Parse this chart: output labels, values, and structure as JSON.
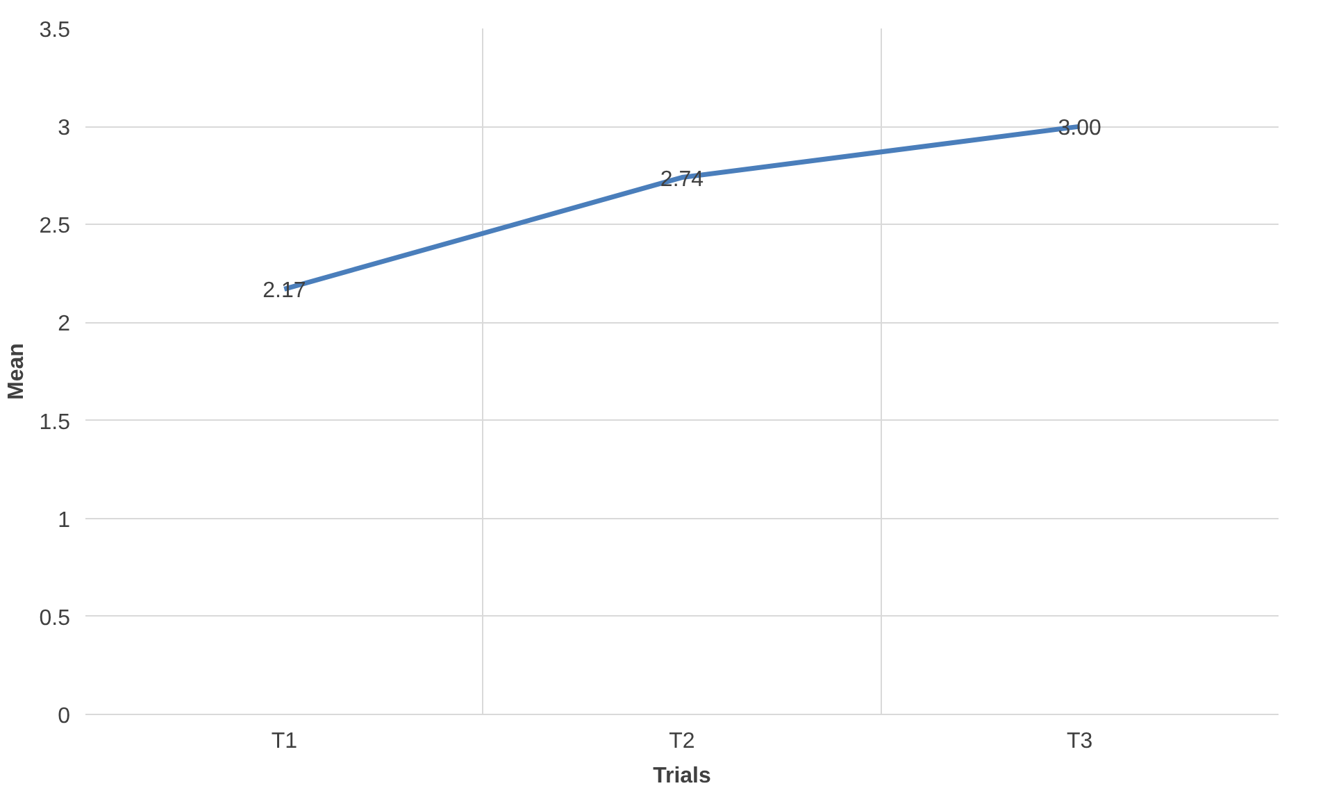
{
  "chart_data": {
    "type": "line",
    "xlabel": "Trials",
    "ylabel": "Mean",
    "categories": [
      "T1",
      "T2",
      "T3"
    ],
    "series": [
      {
        "color": "#4a7ebb",
        "values": [
          2.17,
          2.74,
          3.0
        ],
        "value_labels": [
          "2.17",
          "2.74",
          "3.00"
        ]
      }
    ],
    "ylim": [
      0,
      3.5
    ],
    "yticks": [
      0,
      0.5,
      1,
      1.5,
      2,
      2.5,
      3,
      3.5
    ],
    "grid": true,
    "marker": "none",
    "line_style": "solid"
  }
}
